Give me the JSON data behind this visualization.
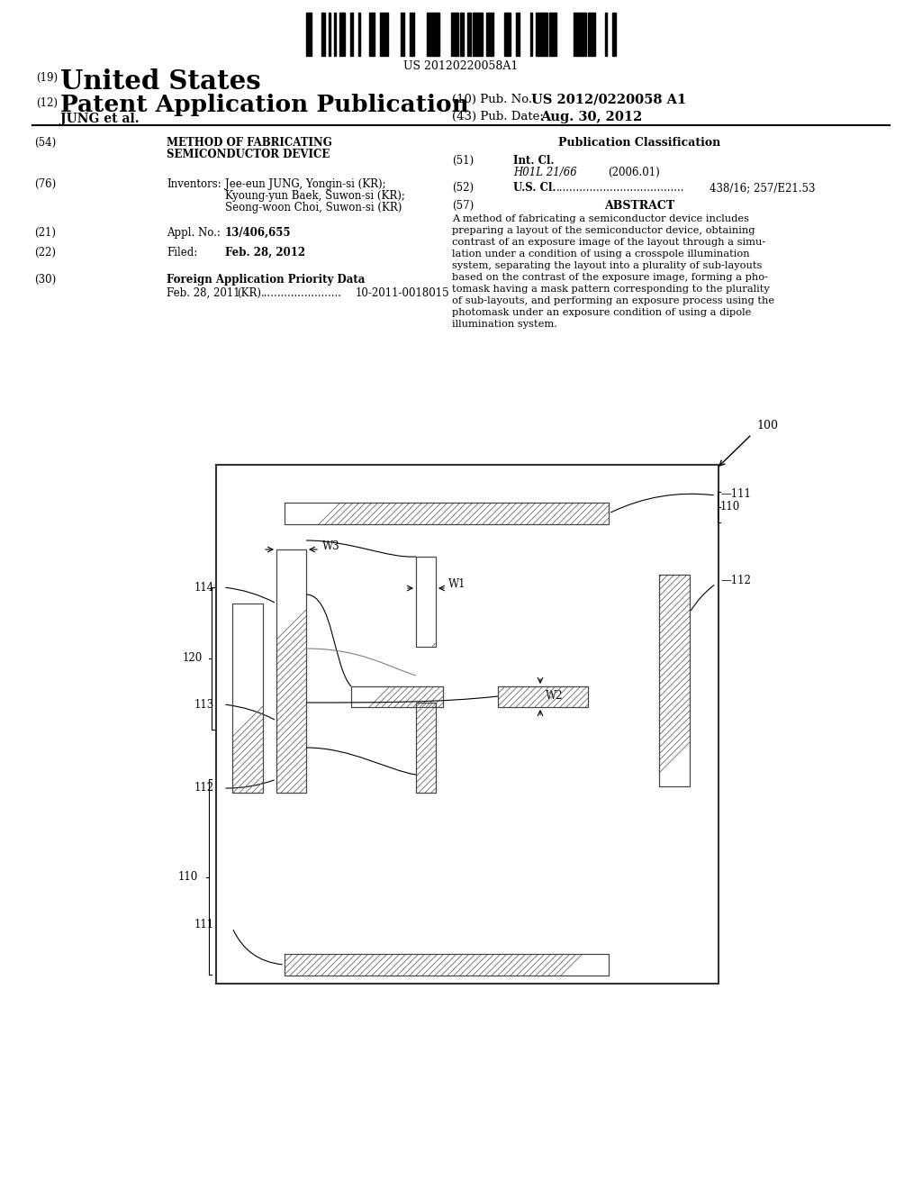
{
  "bg_color": "#ffffff",
  "barcode_text": "US 20120220058A1",
  "title_19": "(19)",
  "title_us": "United States",
  "title_12": "(12)",
  "title_pat": "Patent Application Publication",
  "title_jung": "JUNG et al.",
  "pub_no_label": "(10) Pub. No.:",
  "pub_no_val": "US 2012/0220058 A1",
  "pub_date_label": "(43) Pub. Date:",
  "pub_date_val": "Aug. 30, 2012",
  "field54_label": "(54)",
  "field54_title1": "METHOD OF FABRICATING",
  "field54_title2": "SEMICONDUCTOR DEVICE",
  "field76_label": "(76)",
  "field76_key": "Inventors:",
  "field76_inv1": "Jee-eun JUNG, Yongin-si (KR);",
  "field76_inv2": "Kyoung-yun Baek, Suwon-si (KR);",
  "field76_inv3": "Seong-woon Choi, Suwon-si (KR)",
  "field21_label": "(21)",
  "field21_key": "Appl. No.:",
  "field21_val": "13/406,655",
  "field22_label": "(22)",
  "field22_key": "Filed:",
  "field22_val": "Feb. 28, 2012",
  "field30_label": "(30)",
  "field30_key": "Foreign Application Priority Data",
  "field30_date": "Feb. 28, 2011",
  "field30_country": "(KR)",
  "field30_dots": "........................",
  "field30_num": "10-2011-0018015",
  "pub_class_title": "Publication Classification",
  "field51_label": "(51)",
  "field51_key": "Int. Cl.",
  "field51_class": "H01L 21/66",
  "field51_year": "(2006.01)",
  "field52_label": "(52)",
  "field52_key": "U.S. Cl.",
  "field52_dots": "......................................",
  "field52_val": "438/16; 257/E21.53",
  "field57_label": "(57)",
  "field57_key": "ABSTRACT",
  "abstract_lines": [
    "A method of fabricating a semiconductor device includes",
    "preparing a layout of the semiconductor device, obtaining",
    "contrast of an exposure image of the layout through a simu-",
    "lation under a condition of using a crosspole illumination",
    "system, separating the layout into a plurality of sub-layouts",
    "based on the contrast of the exposure image, forming a pho-",
    "tomask having a mask pattern corresponding to the plurality",
    "of sub-layouts, and performing an exposure process using the",
    "photomask under an exposure condition of using a dipole",
    "illumination system."
  ]
}
